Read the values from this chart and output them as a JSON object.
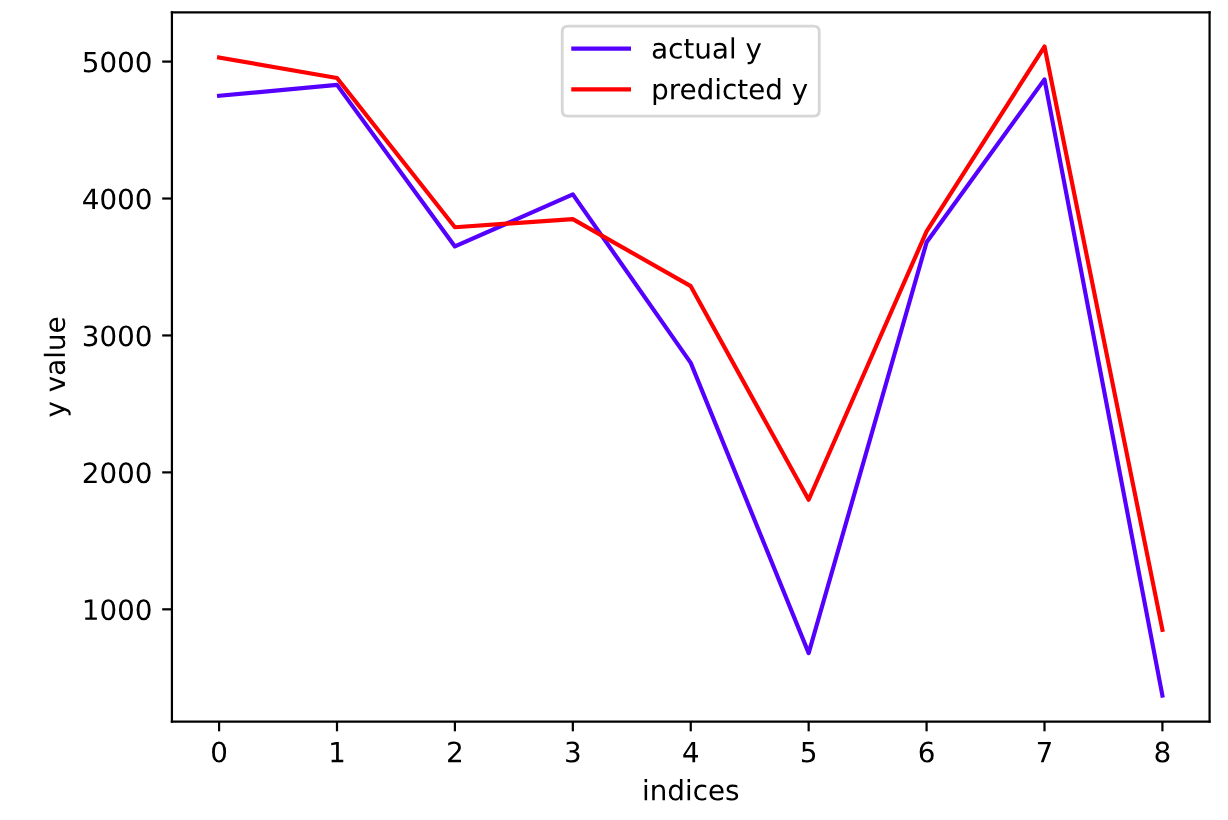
{
  "chart_data": {
    "type": "line",
    "xlabel": "indices",
    "ylabel": "y value",
    "x": [
      0,
      1,
      2,
      3,
      4,
      5,
      6,
      7,
      8
    ],
    "series": [
      {
        "name": "actual y",
        "color": "#5500ff",
        "values": [
          4750,
          4830,
          3650,
          4030,
          2800,
          680,
          3680,
          4870,
          370
        ]
      },
      {
        "name": "predicted y",
        "color": "#ff0000",
        "values": [
          5030,
          4880,
          3790,
          3850,
          3360,
          1800,
          3760,
          5110,
          850
        ]
      }
    ],
    "xlim": [
      -0.4,
      8.4
    ],
    "xticks": [
      0,
      1,
      2,
      3,
      4,
      5,
      6,
      7,
      8
    ],
    "ylim": [
      180,
      5360
    ],
    "yticks": [
      1000,
      2000,
      3000,
      4000,
      5000
    ],
    "grid": false,
    "legend": "top",
    "line_style": "solid"
  }
}
